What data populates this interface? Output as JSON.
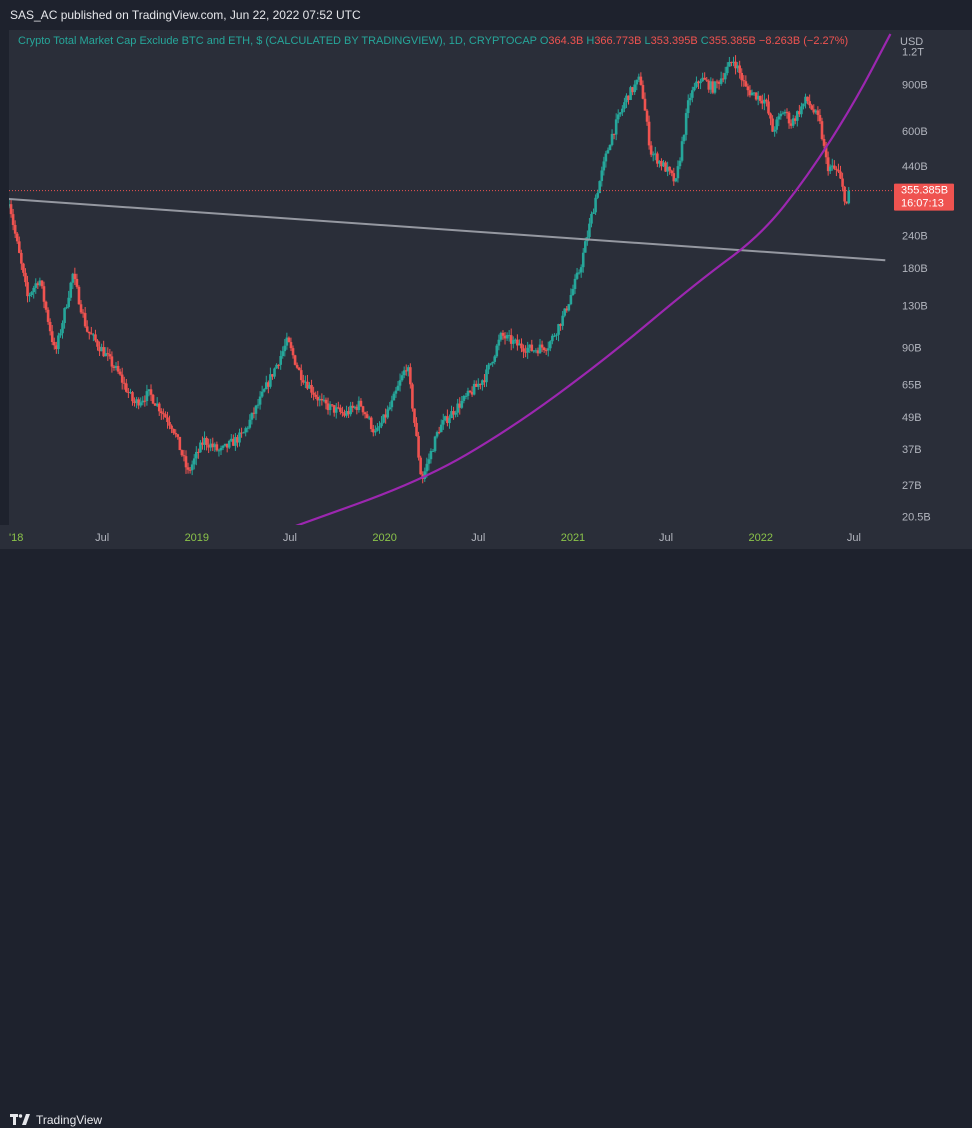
{
  "header": {
    "published_text": "SAS_AC published on TradingView.com, Jun 22, 2022 07:52 UTC"
  },
  "legend": {
    "symbol_text": "Crypto Total Market Cap Exclude BTC and ETH, $ (CALCULATED BY TRADINGVIEW), 1D, CRYPTOCAP",
    "open_label": "O",
    "open_value": "364.3B",
    "high_label": "H",
    "high_value": "366.773B",
    "low_label": "L",
    "low_value": "353.395B",
    "close_label": "C",
    "close_value": "355.385B",
    "change_text": "−8.263B (−2.27%)"
  },
  "footer": {
    "brand": "TradingView"
  },
  "colors": {
    "background": "#1e222d",
    "plot_background": "#2a2e39",
    "up": "#26a69a",
    "down": "#ef5350",
    "curve": "#9c27b0",
    "trendline": "#9598a1",
    "axis_text": "#b2b5be",
    "year_text": "#8bc34a"
  },
  "chart_data": {
    "type": "candlestick",
    "title": "Crypto Total Market Cap Exclude BTC and ETH, $ (CALCULATED BY TRADINGVIEW), 1D, CRYPTOCAP",
    "y_scale": "log",
    "ylabel": "USD",
    "ylim": [
      19.0,
      1450.0
    ],
    "xlim": [
      "2018-01-01",
      "2022-09-15"
    ],
    "y_ticks": [
      {
        "label": "1.2T",
        "value": 1200
      },
      {
        "label": "900B",
        "value": 900
      },
      {
        "label": "600B",
        "value": 600
      },
      {
        "label": "440B",
        "value": 440
      },
      {
        "label": "240B",
        "value": 240
      },
      {
        "label": "180B",
        "value": 180
      },
      {
        "label": "130B",
        "value": 130
      },
      {
        "label": "90B",
        "value": 90
      },
      {
        "label": "65B",
        "value": 65
      },
      {
        "label": "49B",
        "value": 49
      },
      {
        "label": "37B",
        "value": 37
      },
      {
        "label": "27B",
        "value": 27
      },
      {
        "label": "20.5B",
        "value": 20.5
      }
    ],
    "x_ticks": [
      {
        "label": "'18",
        "date": "2018-01-01",
        "year": true
      },
      {
        "label": "Jul",
        "date": "2018-07-01",
        "year": false
      },
      {
        "label": "2019",
        "date": "2019-01-01",
        "year": true
      },
      {
        "label": "Jul",
        "date": "2019-07-01",
        "year": false
      },
      {
        "label": "2020",
        "date": "2020-01-01",
        "year": true
      },
      {
        "label": "Jul",
        "date": "2020-07-01",
        "year": false
      },
      {
        "label": "2021",
        "date": "2021-01-01",
        "year": true
      },
      {
        "label": "Jul",
        "date": "2021-07-01",
        "year": false
      },
      {
        "label": "2022",
        "date": "2022-01-01",
        "year": true
      },
      {
        "label": "Jul",
        "date": "2022-07-01",
        "year": false
      }
    ],
    "price_line": {
      "value": 355.385,
      "label": "355.385B",
      "countdown": "16:07:13"
    },
    "series_anchors": [
      {
        "date": "2018-01-01",
        "value": 330
      },
      {
        "date": "2018-01-10",
        "value": 260
      },
      {
        "date": "2018-02-06",
        "value": 140
      },
      {
        "date": "2018-03-01",
        "value": 165
      },
      {
        "date": "2018-04-01",
        "value": 85
      },
      {
        "date": "2018-05-05",
        "value": 170
      },
      {
        "date": "2018-06-01",
        "value": 105
      },
      {
        "date": "2018-07-01",
        "value": 88
      },
      {
        "date": "2018-08-01",
        "value": 72
      },
      {
        "date": "2018-09-01",
        "value": 55
      },
      {
        "date": "2018-10-01",
        "value": 60
      },
      {
        "date": "2018-11-15",
        "value": 45
      },
      {
        "date": "2018-12-15",
        "value": 30
      },
      {
        "date": "2019-01-15",
        "value": 40
      },
      {
        "date": "2019-02-15",
        "value": 36
      },
      {
        "date": "2019-04-01",
        "value": 42
      },
      {
        "date": "2019-05-01",
        "value": 55
      },
      {
        "date": "2019-06-26",
        "value": 95
      },
      {
        "date": "2019-07-20",
        "value": 72
      },
      {
        "date": "2019-09-01",
        "value": 55
      },
      {
        "date": "2019-10-15",
        "value": 50
      },
      {
        "date": "2019-11-15",
        "value": 55
      },
      {
        "date": "2019-12-15",
        "value": 42
      },
      {
        "date": "2020-01-15",
        "value": 55
      },
      {
        "date": "2020-02-14",
        "value": 78
      },
      {
        "date": "2020-03-13",
        "value": 28
      },
      {
        "date": "2020-04-15",
        "value": 44
      },
      {
        "date": "2020-05-15",
        "value": 52
      },
      {
        "date": "2020-06-15",
        "value": 60
      },
      {
        "date": "2020-07-15",
        "value": 70
      },
      {
        "date": "2020-08-15",
        "value": 100
      },
      {
        "date": "2020-09-15",
        "value": 92
      },
      {
        "date": "2020-10-15",
        "value": 88
      },
      {
        "date": "2020-11-15",
        "value": 92
      },
      {
        "date": "2020-12-15",
        "value": 120
      },
      {
        "date": "2021-01-15",
        "value": 180
      },
      {
        "date": "2021-02-15",
        "value": 340
      },
      {
        "date": "2021-03-15",
        "value": 560
      },
      {
        "date": "2021-04-15",
        "value": 800
      },
      {
        "date": "2021-05-12",
        "value": 950
      },
      {
        "date": "2021-06-01",
        "value": 500
      },
      {
        "date": "2021-07-01",
        "value": 430
      },
      {
        "date": "2021-07-20",
        "value": 380
      },
      {
        "date": "2021-08-15",
        "value": 800
      },
      {
        "date": "2021-09-06",
        "value": 950
      },
      {
        "date": "2021-10-01",
        "value": 870
      },
      {
        "date": "2021-11-10",
        "value": 1120
      },
      {
        "date": "2021-12-04",
        "value": 860
      },
      {
        "date": "2022-01-10",
        "value": 780
      },
      {
        "date": "2022-01-24",
        "value": 600
      },
      {
        "date": "2022-02-15",
        "value": 720
      },
      {
        "date": "2022-03-01",
        "value": 640
      },
      {
        "date": "2022-03-31",
        "value": 790
      },
      {
        "date": "2022-04-25",
        "value": 650
      },
      {
        "date": "2022-05-10",
        "value": 440
      },
      {
        "date": "2022-05-31",
        "value": 420
      },
      {
        "date": "2022-06-18",
        "value": 310
      },
      {
        "date": "2022-06-22",
        "value": 355.385
      }
    ],
    "trendline": {
      "from": {
        "date": "2018-01-01",
        "value": 330
      },
      "to": {
        "date": "2022-08-31",
        "value": 193
      }
    },
    "curve": [
      {
        "date": "2019-07-01",
        "value": 18.5
      },
      {
        "date": "2020-03-13",
        "value": 28
      },
      {
        "date": "2020-09-01",
        "value": 44
      },
      {
        "date": "2021-03-01",
        "value": 80
      },
      {
        "date": "2021-09-01",
        "value": 160
      },
      {
        "date": "2022-01-01",
        "value": 240
      },
      {
        "date": "2022-04-01",
        "value": 400
      },
      {
        "date": "2022-07-01",
        "value": 760
      },
      {
        "date": "2022-09-10",
        "value": 1400
      }
    ]
  }
}
